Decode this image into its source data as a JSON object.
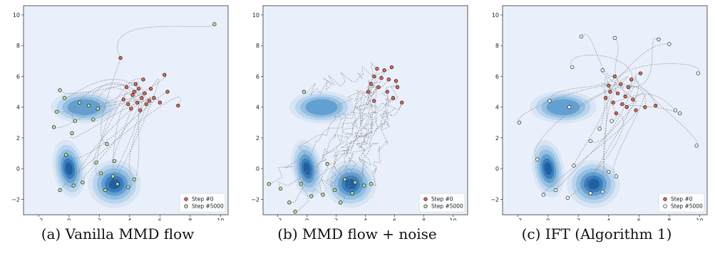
{
  "colors": {
    "background": "#e9f0fb",
    "start_point": "#e8664e",
    "end_point_green": "#b9e8a2",
    "end_point_white": "#ffffff",
    "trajectory": "#8c8c8c",
    "density": [
      "#d6e4f4",
      "#b6d2ec",
      "#8fbde0",
      "#5e9dd0",
      "#3479bb",
      "#1f5c9e"
    ]
  },
  "chart_data": [
    {
      "type": "scatter",
      "caption": "(a) Vanilla MMD flow",
      "xlim": [
        -3,
        10.5
      ],
      "ylim": [
        -3,
        10.6
      ],
      "xticks": [
        -2,
        0,
        2,
        4,
        6,
        8,
        10
      ],
      "yticks": [
        -2,
        0,
        2,
        4,
        6,
        8,
        10
      ],
      "legend": [
        "Step #0",
        "Step #5000"
      ],
      "legend_position": "lower-right",
      "end_style": "green",
      "density_centers": [
        [
          1,
          4
        ],
        [
          0,
          0
        ],
        [
          3,
          -1
        ]
      ],
      "start_points": [
        [
          3.4,
          7.2
        ],
        [
          4.4,
          5.5
        ],
        [
          4.6,
          5.2
        ],
        [
          5.0,
          4.9
        ],
        [
          4.2,
          4.8
        ],
        [
          4.8,
          4.6
        ],
        [
          5.3,
          4.4
        ],
        [
          4.5,
          4.3
        ],
        [
          3.9,
          4.2
        ],
        [
          5.6,
          4.6
        ],
        [
          6.3,
          6.1
        ],
        [
          6.5,
          5.0
        ],
        [
          6.0,
          4.3
        ],
        [
          7.2,
          4.1
        ],
        [
          4.3,
          5.0
        ],
        [
          4.9,
          5.8
        ],
        [
          3.8,
          5.3
        ],
        [
          4.1,
          3.9
        ],
        [
          5.1,
          4.2
        ],
        [
          4.7,
          3.8
        ],
        [
          5.4,
          5.2
        ],
        [
          3.6,
          4.5
        ]
      ],
      "end_points": [
        [
          9.6,
          9.4
        ],
        [
          -0.6,
          5.1
        ],
        [
          -0.3,
          4.6
        ],
        [
          0.7,
          4.3
        ],
        [
          1.3,
          4.1
        ],
        [
          -0.8,
          3.7
        ],
        [
          0.4,
          3.1
        ],
        [
          1.9,
          3.9
        ],
        [
          -1.0,
          2.7
        ],
        [
          0.2,
          2.3
        ],
        [
          1.6,
          3.2
        ],
        [
          -0.2,
          0.9
        ],
        [
          0.3,
          -1.1
        ],
        [
          -0.6,
          -1.4
        ],
        [
          0.9,
          -0.9
        ],
        [
          2.1,
          -0.3
        ],
        [
          2.4,
          -1.4
        ],
        [
          3.2,
          -1.0
        ],
        [
          3.9,
          -1.2
        ],
        [
          4.3,
          -0.7
        ],
        [
          2.9,
          -0.5
        ],
        [
          1.8,
          0.4
        ],
        [
          2.5,
          1.6
        ],
        [
          3.0,
          0.5
        ]
      ]
    },
    {
      "type": "scatter",
      "caption": "(b) MMD flow + noise",
      "xlim": [
        -3,
        11
      ],
      "ylim": [
        -3,
        10.6
      ],
      "xticks": [
        -2,
        0,
        2,
        4,
        6,
        8,
        10
      ],
      "yticks": [
        -2,
        0,
        2,
        4,
        6,
        8,
        10
      ],
      "legend": [
        "Step #0",
        "Step #5000"
      ],
      "legend_position": "lower-right",
      "end_style": "green",
      "density_centers": [
        [
          1,
          4
        ],
        [
          0,
          0
        ],
        [
          3,
          -1
        ]
      ],
      "start_points": [
        [
          4.8,
          6.5
        ],
        [
          5.3,
          6.4
        ],
        [
          5.8,
          6.6
        ],
        [
          4.6,
          6.0
        ],
        [
          5.1,
          5.9
        ],
        [
          5.6,
          5.8
        ],
        [
          6.1,
          5.7
        ],
        [
          4.4,
          5.5
        ],
        [
          4.9,
          5.3
        ],
        [
          5.5,
          5.0
        ],
        [
          6.2,
          5.3
        ],
        [
          4.2,
          5.0
        ],
        [
          5.9,
          4.6
        ],
        [
          4.6,
          4.4
        ],
        [
          6.5,
          4.3
        ]
      ],
      "end_points": [
        [
          -0.2,
          5.0
        ],
        [
          -2.6,
          -1.0
        ],
        [
          -1.8,
          -1.3
        ],
        [
          -1.2,
          -2.2
        ],
        [
          -0.8,
          -2.8
        ],
        [
          -0.4,
          -1.0
        ],
        [
          0.3,
          -1.8
        ],
        [
          1.1,
          -1.7
        ],
        [
          1.9,
          -1.4
        ],
        [
          2.6,
          -0.7
        ],
        [
          3.3,
          -0.9
        ],
        [
          3.9,
          -1.1
        ],
        [
          4.4,
          -1.0
        ],
        [
          3.1,
          -1.6
        ],
        [
          1.4,
          0.3
        ],
        [
          2.3,
          -2.2
        ]
      ]
    },
    {
      "type": "scatter",
      "caption": "(c) IFT (Algorithm 1)",
      "xlim": [
        -3,
        10.5
      ],
      "ylim": [
        -3,
        10.6
      ],
      "xticks": [
        -2,
        0,
        2,
        4,
        6,
        8,
        10
      ],
      "yticks": [
        -2,
        0,
        2,
        4,
        6,
        8,
        10
      ],
      "legend": [
        "Step #0",
        "Step #5000"
      ],
      "legend_position": "lower-right",
      "end_style": "white",
      "density_centers": [
        [
          1,
          4
        ],
        [
          0,
          0
        ],
        [
          3,
          -1
        ]
      ],
      "start_points": [
        [
          4.4,
          6.0
        ],
        [
          4.8,
          5.5
        ],
        [
          5.3,
          5.3
        ],
        [
          4.1,
          5.0
        ],
        [
          4.6,
          4.9
        ],
        [
          5.1,
          4.7
        ],
        [
          5.6,
          4.5
        ],
        [
          4.3,
          4.3
        ],
        [
          4.9,
          4.2
        ],
        [
          6.1,
          6.2
        ],
        [
          6.4,
          4.0
        ],
        [
          7.1,
          4.1
        ],
        [
          5.8,
          3.8
        ],
        [
          5.2,
          4.0
        ],
        [
          4.5,
          3.6
        ],
        [
          5.5,
          5.8
        ],
        [
          3.8,
          4.6
        ],
        [
          4.0,
          5.4
        ]
      ],
      "end_points": [
        [
          2.2,
          8.6
        ],
        [
          4.4,
          8.5
        ],
        [
          7.3,
          8.4
        ],
        [
          8.0,
          8.1
        ],
        [
          9.9,
          6.2
        ],
        [
          1.6,
          6.6
        ],
        [
          3.6,
          6.4
        ],
        [
          8.4,
          3.8
        ],
        [
          8.7,
          3.6
        ],
        [
          9.8,
          1.5
        ],
        [
          -1.9,
          3.0
        ],
        [
          -0.7,
          0.6
        ],
        [
          -0.3,
          -1.7
        ],
        [
          0.5,
          -1.4
        ],
        [
          1.3,
          -1.9
        ],
        [
          2.8,
          -1.6
        ],
        [
          3.6,
          -1.5
        ],
        [
          1.7,
          0.2
        ],
        [
          0.1,
          4.4
        ],
        [
          1.4,
          4.0
        ],
        [
          2.8,
          1.8
        ],
        [
          3.4,
          2.6
        ],
        [
          4.2,
          3.1
        ],
        [
          4.0,
          -0.2
        ],
        [
          4.5,
          -0.5
        ]
      ]
    }
  ]
}
